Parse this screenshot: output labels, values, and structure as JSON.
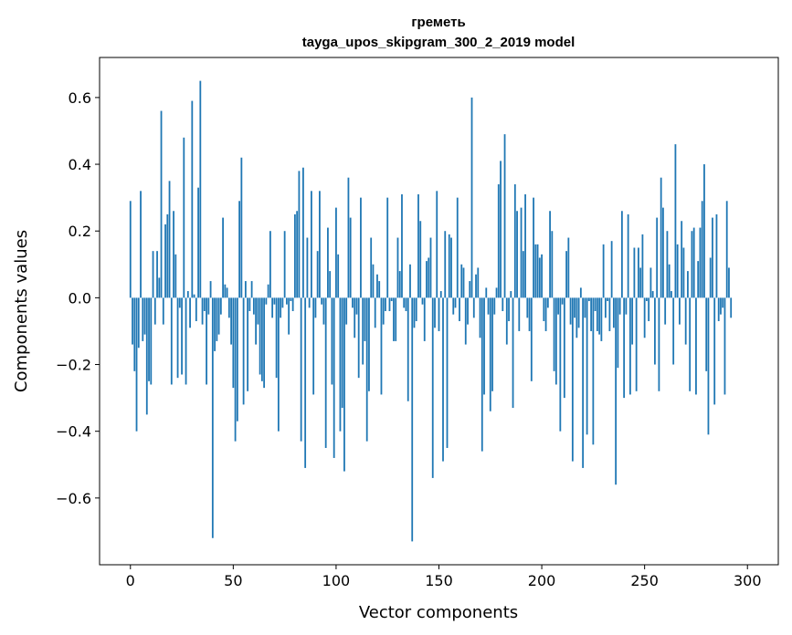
{
  "chart_data": {
    "type": "bar",
    "title_line1": "греметь",
    "title_line2": "tayga_upos_skipgram_300_2_2019 model",
    "xlabel": "Vector components",
    "ylabel": "Components values",
    "xlim": [
      -15,
      315
    ],
    "ylim": [
      -0.8,
      0.72
    ],
    "xticks": [
      0,
      50,
      100,
      150,
      200,
      250,
      300
    ],
    "yticks": [
      -0.6,
      -0.4,
      -0.2,
      0.0,
      0.2,
      0.4,
      0.6
    ],
    "ytick_labels": [
      "−0.6",
      "−0.4",
      "−0.2",
      "0.0",
      "0.2",
      "0.4",
      "0.6"
    ],
    "bar_color": "#1f77b4",
    "grid": false,
    "values": [
      0.29,
      -0.14,
      -0.22,
      -0.4,
      -0.15,
      0.32,
      -0.13,
      -0.11,
      -0.35,
      -0.25,
      -0.26,
      0.14,
      -0.08,
      0.14,
      0.06,
      0.56,
      -0.08,
      0.22,
      0.25,
      0.35,
      -0.26,
      0.26,
      0.13,
      -0.24,
      -0.03,
      -0.23,
      0.48,
      -0.26,
      0.02,
      -0.09,
      0.59,
      0.01,
      -0.07,
      0.33,
      0.65,
      -0.08,
      -0.04,
      -0.26,
      -0.05,
      0.05,
      -0.72,
      -0.16,
      -0.13,
      -0.11,
      -0.05,
      0.24,
      0.04,
      0.03,
      -0.06,
      -0.14,
      -0.27,
      -0.43,
      -0.37,
      0.29,
      0.42,
      -0.32,
      0.05,
      -0.28,
      -0.04,
      0.05,
      -0.05,
      -0.14,
      -0.08,
      -0.23,
      -0.25,
      -0.27,
      -0.02,
      0.04,
      0.2,
      -0.06,
      -0.02,
      -0.24,
      -0.4,
      -0.06,
      -0.03,
      0.2,
      -0.02,
      -0.11,
      -0.01,
      -0.04,
      0.25,
      0.26,
      0.38,
      -0.43,
      0.39,
      -0.51,
      0.18,
      -0.03,
      0.32,
      -0.29,
      -0.06,
      0.14,
      0.32,
      -0.02,
      -0.08,
      -0.45,
      0.21,
      0.08,
      -0.26,
      -0.48,
      0.27,
      0.13,
      -0.4,
      -0.33,
      -0.52,
      -0.08,
      0.36,
      0.24,
      -0.03,
      -0.12,
      -0.05,
      -0.24,
      0.3,
      -0.2,
      -0.13,
      -0.43,
      -0.28,
      0.18,
      0.1,
      -0.09,
      0.07,
      0.05,
      -0.29,
      -0.08,
      -0.04,
      0.3,
      -0.04,
      -0.01,
      -0.13,
      -0.13,
      0.18,
      0.08,
      0.31,
      -0.03,
      -0.04,
      -0.31,
      0.1,
      -0.73,
      -0.09,
      -0.07,
      0.31,
      0.23,
      -0.02,
      -0.13,
      0.11,
      0.12,
      0.18,
      -0.54,
      -0.09,
      0.32,
      -0.1,
      0.02,
      -0.49,
      0.2,
      -0.45,
      0.19,
      0.18,
      -0.05,
      -0.03,
      0.3,
      -0.07,
      0.1,
      0.09,
      -0.14,
      -0.08,
      0.05,
      0.6,
      -0.06,
      0.07,
      0.09,
      -0.12,
      -0.46,
      -0.29,
      0.03,
      -0.05,
      -0.34,
      -0.28,
      -0.05,
      0.03,
      0.34,
      0.41,
      -0.04,
      0.49,
      -0.14,
      -0.07,
      0.02,
      -0.33,
      0.34,
      0.26,
      -0.1,
      0.27,
      0.14,
      0.31,
      -0.06,
      -0.1,
      -0.25,
      0.3,
      0.16,
      0.16,
      0.12,
      0.13,
      -0.07,
      -0.1,
      -0.03,
      0.26,
      0.2,
      -0.22,
      -0.26,
      -0.05,
      -0.4,
      -0.02,
      -0.3,
      0.14,
      0.18,
      -0.08,
      -0.49,
      -0.06,
      -0.12,
      -0.09,
      0.03,
      -0.51,
      -0.06,
      -0.41,
      -0.01,
      -0.1,
      -0.44,
      -0.04,
      -0.1,
      -0.11,
      -0.13,
      0.16,
      -0.06,
      -0.01,
      -0.1,
      0.17,
      -0.09,
      -0.56,
      -0.21,
      -0.05,
      0.26,
      -0.3,
      -0.05,
      0.25,
      -0.29,
      -0.14,
      0.15,
      -0.28,
      0.15,
      0.09,
      0.19,
      -0.12,
      -0.01,
      -0.07,
      0.09,
      0.02,
      -0.2,
      0.24,
      -0.28,
      0.36,
      0.27,
      -0.08,
      0.2,
      0.1,
      0.02,
      -0.2,
      0.46,
      0.16,
      -0.08,
      0.23,
      0.15,
      -0.14,
      0.08,
      -0.28,
      0.2,
      0.21,
      -0.29,
      0.11,
      0.21,
      0.29,
      0.4,
      -0.22,
      -0.41,
      0.12,
      0.24,
      -0.32,
      0.25,
      -0.07,
      -0.05,
      -0.03,
      -0.29,
      0.29,
      0.09,
      -0.06
    ]
  }
}
